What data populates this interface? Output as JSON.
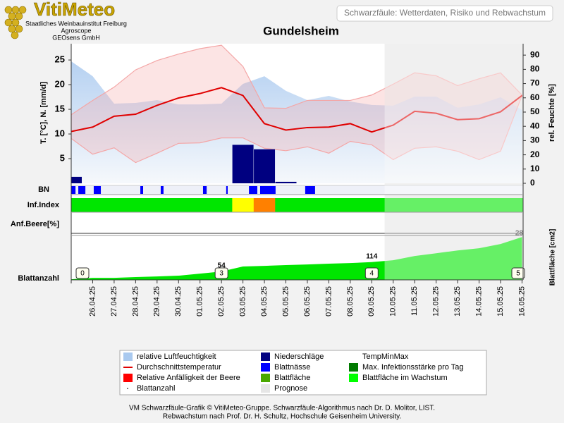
{
  "header": {
    "logo": "VitiMeteo",
    "lines": [
      "Staatliches Weinbauinstitut Freiburg",
      "Agroscope",
      "GEOsens GmbH"
    ],
    "box": "Schwarzfäule: Wetterdaten, Risiko und Rebwachstum"
  },
  "chart_data": {
    "type": "combo",
    "title": "Gundelsheim",
    "categories": [
      null,
      "26.04.25",
      "27.04.25",
      "28.04.25",
      "29.04.25",
      "30.04.25",
      "01.05.25",
      "02.05.25",
      "03.05.25",
      "04.05.25",
      "05.05.25",
      "06.05.25",
      "07.05.25",
      "08.05.25",
      "09.05.25",
      "10.05.25",
      "11.05.25",
      "12.05.25",
      "13.05.25",
      "14.05.25",
      "15.05.25",
      "16.05.25"
    ],
    "ylabel": "T. [°C], N. [mm/d]",
    "y2label": "rel. Feuchte [%]",
    "ylim": [
      0,
      28.3
    ],
    "yticks": [
      5,
      10,
      15,
      20,
      25
    ],
    "y2lim": [
      0,
      98
    ],
    "y2ticks": [
      0,
      10,
      20,
      30,
      40,
      50,
      60,
      70,
      80,
      90
    ],
    "prognose_from": 14.6,
    "humidity": {
      "axis": "y2",
      "color": "#a9c9ef",
      "values": [
        85.6,
        75.2,
        55.9,
        56.4,
        58.4,
        55.4,
        55.4,
        55.9,
        69.8,
        75.2,
        64.9,
        58.4,
        61.4,
        57.4,
        55.0,
        54.5,
        60.9,
        60.9,
        53.0,
        55.4,
        60.4,
        51.5
      ]
    },
    "temp_minmax": {
      "color": "#f4a6a6",
      "high": [
        13.9,
        16.8,
        19.5,
        23.0,
        24.9,
        26.2,
        27.3,
        28.0,
        23.7,
        15.3,
        15.2,
        16.8,
        16.8,
        16.8,
        17.9,
        20.1,
        22.4,
        21.8,
        19.8,
        21.2,
        22.4,
        17.9
      ],
      "low": [
        9.1,
        5.9,
        7.2,
        4.2,
        6.1,
        8.1,
        8.2,
        9.2,
        9.2,
        7.1,
        6.6,
        7.4,
        6.1,
        8.5,
        7.8,
        4.8,
        7.1,
        7.4,
        6.5,
        4.8,
        6.5,
        17.8
      ]
    },
    "temperature": {
      "color": "#e00000",
      "values": [
        10.5,
        11.4,
        13.6,
        14.0,
        15.8,
        17.3,
        18.2,
        19.4,
        17.8,
        12.1,
        10.8,
        11.3,
        11.4,
        12.1,
        10.4,
        11.8,
        14.6,
        14.2,
        12.9,
        13.1,
        14.5,
        17.8
      ]
    },
    "precipitation": {
      "color": "#000080",
      "values": [
        1.3,
        0,
        0,
        0,
        0,
        0,
        0,
        0,
        7.8,
        6.9,
        0.3,
        0,
        0,
        0,
        0,
        0,
        0,
        0,
        0,
        0,
        0,
        0
      ]
    },
    "bn": {
      "label": "BN",
      "color": "#0000ff",
      "periods": [
        [
          0,
          0.2
        ],
        [
          0.33,
          0.66
        ],
        [
          1.05,
          1.38
        ],
        [
          3.22,
          3.35
        ],
        [
          4.17,
          4.3
        ],
        [
          6.14,
          6.31
        ],
        [
          7.22,
          7.29
        ],
        [
          8.28,
          8.67
        ],
        [
          8.8,
          9.52
        ],
        [
          10.9,
          11.36
        ]
      ]
    },
    "inf_index": {
      "label": "Inf.Index",
      "level_colors": [
        "#00e600",
        "#ffff00",
        "#ff8000"
      ],
      "values": [
        1,
        1,
        1,
        1,
        1,
        1,
        1,
        1,
        2,
        3,
        1,
        1,
        1,
        1,
        1,
        1,
        1,
        1,
        1,
        1,
        1,
        1
      ]
    },
    "berry": {
      "label": "Anf.Beere[%]",
      "mark": "28"
    },
    "leaf_area": {
      "ylabel": "Blattfläche [cm2]",
      "color": "#00e600",
      "ylim": [
        0,
        285
      ],
      "values": [
        4,
        13,
        13,
        18,
        22,
        27,
        40,
        54,
        86,
        90,
        95,
        99,
        104,
        108,
        114,
        126,
        153,
        171,
        189,
        203,
        230,
        275
      ],
      "value_labels": [
        null,
        null,
        null,
        null,
        null,
        null,
        null,
        "54",
        null,
        null,
        null,
        null,
        null,
        null,
        "114",
        null,
        null,
        null,
        null,
        null,
        null,
        null
      ]
    },
    "leaf_count": {
      "label": "Blattanzahl",
      "values": [
        0,
        null,
        null,
        null,
        null,
        null,
        null,
        3,
        null,
        null,
        null,
        null,
        null,
        null,
        4,
        null,
        null,
        null,
        null,
        null,
        null,
        5
      ]
    },
    "legend": [
      {
        "label": "relative Luftfeuchtigkeit",
        "color": "#a9c9ef",
        "kind": "rect"
      },
      {
        "label": "Durchschnittstemperatur",
        "color": "#e00000",
        "kind": "line"
      },
      {
        "label": "Relative Anfälligkeit der Beere",
        "color": "#ff0000",
        "kind": "rect"
      },
      {
        "label": "Blattanzahl",
        "color": "#555555",
        "kind": "dot"
      },
      {
        "label": "Niederschläge",
        "color": "#000080",
        "kind": "rect"
      },
      {
        "label": "Blattnässe",
        "color": "#0000ff",
        "kind": "rect"
      },
      {
        "label": "Blattfläche",
        "color": "#4aa800",
        "kind": "rect"
      },
      {
        "label": "Prognose",
        "color": "#e6e6e6",
        "kind": "rect"
      },
      {
        "label": "TempMinMax",
        "color": "#ffffff",
        "kind": "none"
      },
      {
        "label": "Max. Infektionsstärke pro Tag",
        "color": "#007a00",
        "kind": "rect"
      },
      {
        "label": "Blattfläche im Wachstum",
        "color": "#00ff00",
        "kind": "rect"
      }
    ]
  },
  "footer": [
    "VM Schwarzfäule-Grafik © VitiMeteo-Gruppe. Schwarzfäule-Algorithmus nach Dr. D. Molitor, LIST.",
    "Rebwachstum nach Prof. Dr. H. Schultz, Hochschule Geisenheim University."
  ]
}
